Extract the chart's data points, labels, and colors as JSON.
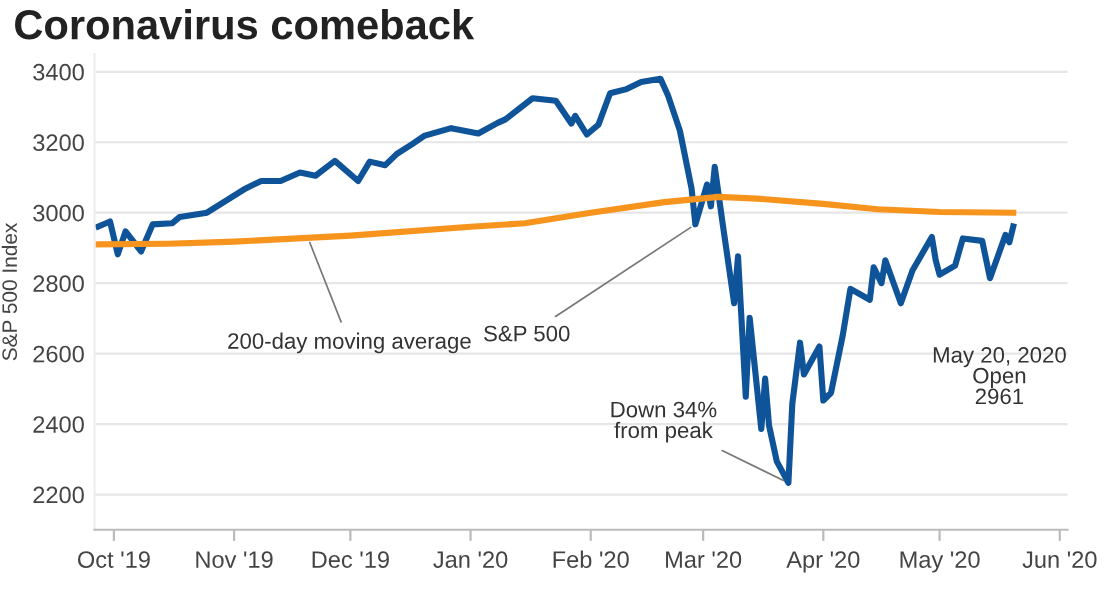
{
  "chart_data": {
    "type": "line",
    "title": "Coronavirus comeback",
    "ylabel": "S&P 500 Index",
    "xlim": [
      "2019-09-26",
      "2020-06-03"
    ],
    "xticks": [
      {
        "value": "2019-10-01",
        "label": "Oct '19"
      },
      {
        "value": "2019-11-01",
        "label": "Nov '19"
      },
      {
        "value": "2019-12-01",
        "label": "Dec '19"
      },
      {
        "value": "2020-01-01",
        "label": "Jan '20"
      },
      {
        "value": "2020-02-01",
        "label": "Feb '20"
      },
      {
        "value": "2020-03-01",
        "label": "Mar '20"
      },
      {
        "value": "2020-04-01",
        "label": "Apr '20"
      },
      {
        "value": "2020-05-01",
        "label": "May '20"
      },
      {
        "value": "2020-06-01",
        "label": "Jun '20"
      }
    ],
    "ylim": [
      2100,
      3450
    ],
    "yticks": [
      2200,
      2400,
      2600,
      2800,
      3000,
      3200,
      3400
    ],
    "grid": "y",
    "legend": false,
    "marker": "none",
    "line_style": "solid",
    "series": [
      {
        "name": "S&P 500",
        "color": "#0f5499",
        "x": [
          "2019-09-27",
          "2019-09-30",
          "2019-10-02",
          "2019-10-04",
          "2019-10-08",
          "2019-10-11",
          "2019-10-16",
          "2019-10-18",
          "2019-10-25",
          "2019-11-04",
          "2019-11-08",
          "2019-11-13",
          "2019-11-18",
          "2019-11-22",
          "2019-11-27",
          "2019-12-03",
          "2019-12-06",
          "2019-12-10",
          "2019-12-13",
          "2019-12-17",
          "2019-12-20",
          "2019-12-27",
          "2020-01-03",
          "2020-01-08",
          "2020-01-10",
          "2020-01-17",
          "2020-01-23",
          "2020-01-27",
          "2020-01-28",
          "2020-01-31",
          "2020-02-03",
          "2020-02-06",
          "2020-02-10",
          "2020-02-14",
          "2020-02-19",
          "2020-02-21",
          "2020-02-24",
          "2020-02-27",
          "2020-02-28",
          "2020-03-02",
          "2020-03-03",
          "2020-03-04",
          "2020-03-06",
          "2020-03-09",
          "2020-03-10",
          "2020-03-12",
          "2020-03-13",
          "2020-03-16",
          "2020-03-17",
          "2020-03-18",
          "2020-03-20",
          "2020-03-23",
          "2020-03-24",
          "2020-03-26",
          "2020-03-27",
          "2020-03-31",
          "2020-04-01",
          "2020-04-03",
          "2020-04-06",
          "2020-04-08",
          "2020-04-13",
          "2020-04-14",
          "2020-04-16",
          "2020-04-17",
          "2020-04-21",
          "2020-04-24",
          "2020-04-29",
          "2020-04-30",
          "2020-05-01",
          "2020-05-05",
          "2020-05-07",
          "2020-05-12",
          "2020-05-14",
          "2020-05-18",
          "2020-05-19",
          "2020-05-20"
        ],
        "values": [
          2961,
          2975,
          2882,
          2947,
          2890,
          2967,
          2970,
          2988,
          3000,
          3069,
          3090,
          3090,
          3114,
          3105,
          3147,
          3090,
          3145,
          3135,
          3167,
          3195,
          3218,
          3240,
          3225,
          3255,
          3265,
          3325,
          3318,
          3253,
          3275,
          3222,
          3250,
          3339,
          3350,
          3371,
          3380,
          3331,
          3233,
          3070,
          2967,
          3080,
          3018,
          3130,
          2972,
          2743,
          2876,
          2478,
          2702,
          2386,
          2529,
          2396,
          2294,
          2233,
          2457,
          2631,
          2541,
          2620,
          2467,
          2489,
          2651,
          2784,
          2753,
          2845,
          2800,
          2865,
          2743,
          2836,
          2931,
          2865,
          2824,
          2850,
          2927,
          2920,
          2814,
          2937,
          2916,
          2961
        ]
      },
      {
        "color": "#f7941d",
        "x": [
          "2019-09-27",
          "2019-10-15",
          "2019-11-01",
          "2019-12-01",
          "2020-01-01",
          "2020-01-15",
          "2020-02-01",
          "2020-02-20",
          "2020-03-05",
          "2020-03-15",
          "2020-04-01",
          "2020-04-15",
          "2020-05-01",
          "2020-05-20"
        ],
        "values": [
          2910,
          2912,
          2918,
          2935,
          2960,
          2970,
          3000,
          3030,
          3045,
          3040,
          3025,
          3010,
          3002,
          3000
        ]
      }
    ],
    "annotations": [
      {
        "text": "200-day moving average",
        "x": "2019-11-20",
        "y": 2930
      },
      {
        "text": "Down 34%\nfrom peak",
        "x": "2020-03-23",
        "y": 2233
      },
      "May 20, 2020\nOpen\n2961"
    ]
  }
}
